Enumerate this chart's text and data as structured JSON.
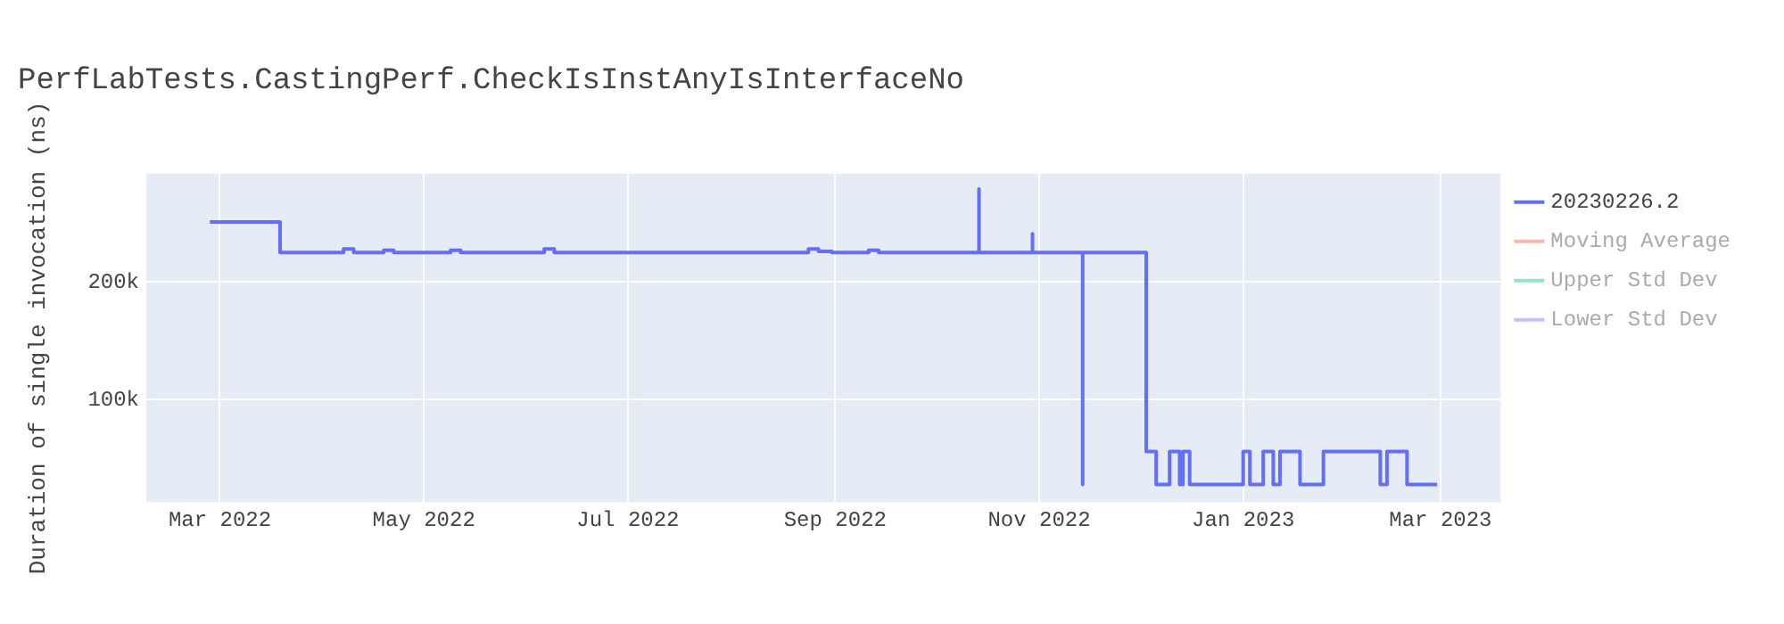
{
  "chart_data": {
    "type": "line",
    "title": "PerfLabTests.CastingPerf.CheckIsInstAnyIsInterfaceNo",
    "ylabel": "Duration of single invocation (ns)",
    "xlim": [
      "2022-02-07",
      "2023-03-19"
    ],
    "xticks": [
      {
        "value": "2022-03-01",
        "label": "Mar 2022"
      },
      {
        "value": "2022-05-01",
        "label": "May 2022"
      },
      {
        "value": "2022-07-01",
        "label": "Jul 2022"
      },
      {
        "value": "2022-09-01",
        "label": "Sep 2022"
      },
      {
        "value": "2022-11-01",
        "label": "Nov 2022"
      },
      {
        "value": "2023-01-01",
        "label": "Jan 2023"
      },
      {
        "value": "2023-03-01",
        "label": "Mar 2023"
      }
    ],
    "ylim": [
      13000,
      292000
    ],
    "yticks": [
      {
        "value": 100000,
        "label": "100k"
      },
      {
        "value": 200000,
        "label": "200k"
      }
    ],
    "grid": true,
    "legend": "top right",
    "series": [
      {
        "name": "20230226.2",
        "color": "#636efa",
        "x": [
          "2022-02-26",
          "2022-03-19",
          "2022-03-19",
          "2022-04-07",
          "2022-04-07",
          "2022-04-10",
          "2022-04-10",
          "2022-04-19",
          "2022-04-19",
          "2022-04-22",
          "2022-04-22",
          "2022-05-09",
          "2022-05-09",
          "2022-05-12",
          "2022-05-12",
          "2022-06-06",
          "2022-06-06",
          "2022-06-09",
          "2022-06-09",
          "2022-08-24",
          "2022-08-24",
          "2022-08-27",
          "2022-08-27",
          "2022-08-31",
          "2022-08-31",
          "2022-09-11",
          "2022-09-11",
          "2022-09-14",
          "2022-09-14",
          "2022-10-14",
          "2022-10-14",
          "2022-10-14",
          "2022-10-30",
          "2022-10-30",
          "2022-10-30",
          "2022-11-14",
          "2022-11-14",
          "2022-11-14",
          "2022-12-03",
          "2022-12-03",
          "2022-12-06",
          "2022-12-06",
          "2022-12-10",
          "2022-12-10",
          "2022-12-13",
          "2022-12-13",
          "2022-12-14",
          "2022-12-14",
          "2022-12-16",
          "2022-12-16",
          "2023-01-01",
          "2023-01-01",
          "2023-01-03",
          "2023-01-03",
          "2023-01-07",
          "2023-01-07",
          "2023-01-10",
          "2023-01-10",
          "2023-01-12",
          "2023-01-12",
          "2023-01-18",
          "2023-01-18",
          "2023-01-25",
          "2023-01-25",
          "2023-02-11",
          "2023-02-11",
          "2023-02-13",
          "2023-02-13",
          "2023-02-19",
          "2023-02-19",
          "2023-02-28"
        ],
        "values": [
          251000,
          251000,
          225000,
          225000,
          228000,
          228000,
          225000,
          225000,
          227000,
          227000,
          225000,
          225000,
          227000,
          227000,
          225000,
          225000,
          228000,
          228000,
          225000,
          225000,
          228000,
          228000,
          226000,
          226000,
          225000,
          225000,
          227000,
          227000,
          225000,
          225000,
          279000,
          225000,
          225000,
          241000,
          225000,
          225000,
          28000,
          225000,
          225000,
          56000,
          56000,
          28000,
          28000,
          56000,
          56000,
          28000,
          28000,
          56000,
          56000,
          28000,
          28000,
          56000,
          56000,
          28000,
          28000,
          56000,
          56000,
          28000,
          28000,
          56000,
          56000,
          28000,
          28000,
          56000,
          56000,
          28000,
          28000,
          56000,
          56000,
          28000,
          28000
        ]
      },
      {
        "name": "Moving Average",
        "color": "#f6b8a8"
      },
      {
        "name": "Upper Std Dev",
        "color": "#8ee6c6"
      },
      {
        "name": "Lower Std Dev",
        "color": "#cdbcf7"
      }
    ]
  }
}
